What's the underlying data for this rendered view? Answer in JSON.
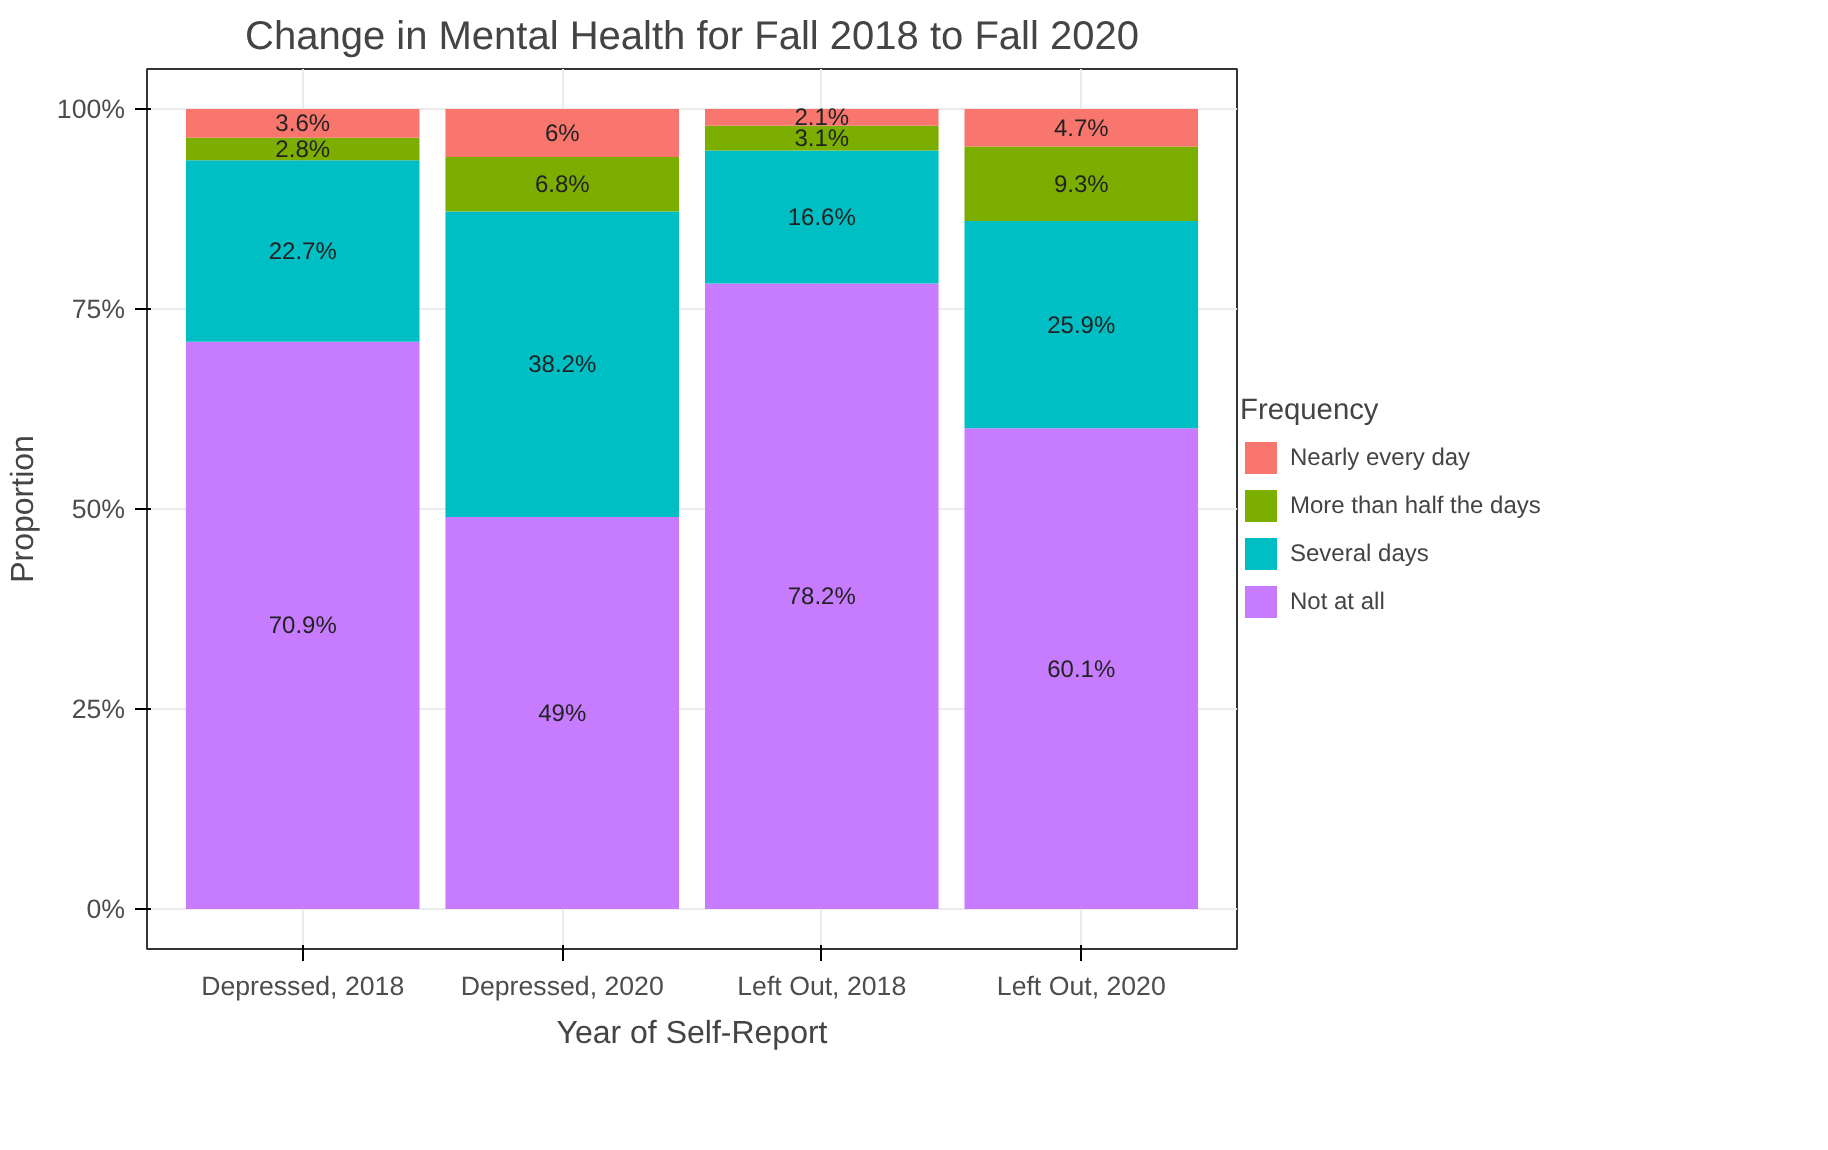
{
  "chart_data": {
    "type": "bar",
    "stacked": true,
    "title": "Change in Mental Health for Fall 2018 to Fall 2020",
    "xlabel": "Year of Self-Report",
    "ylabel": "Proportion",
    "legend_title": "Frequency",
    "legend": "right",
    "grid": true,
    "categories": [
      "Depressed, 2018",
      "Depressed, 2020",
      "Left Out, 2018",
      "Left Out, 2020"
    ],
    "ylim": [
      -5,
      105
    ],
    "yticks": [
      {
        "value": 0,
        "label": "0%"
      },
      {
        "value": 25,
        "label": "25%"
      },
      {
        "value": 50,
        "label": "50%"
      },
      {
        "value": 75,
        "label": "75%"
      },
      {
        "value": 100,
        "label": "100%"
      }
    ],
    "series": [
      {
        "name": "Not at all",
        "color": "#c77cff",
        "values": [
          70.9,
          49,
          78.2,
          60.1
        ],
        "value_labels": [
          "70.9%",
          "49%",
          "78.2%",
          "60.1%"
        ]
      },
      {
        "name": "Several days",
        "color": "#00bfc4",
        "values": [
          22.7,
          38.2,
          16.6,
          25.9
        ],
        "value_labels": [
          "22.7%",
          "38.2%",
          "16.6%",
          "25.9%"
        ]
      },
      {
        "name": "More than half the days",
        "color": "#7cae00",
        "values": [
          2.8,
          6.8,
          3.1,
          9.3
        ],
        "value_labels": [
          "2.8%",
          "6.8%",
          "3.1%",
          "9.3%"
        ]
      },
      {
        "name": "Nearly every day",
        "color": "#f8766d",
        "values": [
          3.6,
          6,
          2.1,
          4.7
        ],
        "value_labels": [
          "3.6%",
          "6%",
          "2.1%",
          "4.7%"
        ]
      }
    ]
  }
}
